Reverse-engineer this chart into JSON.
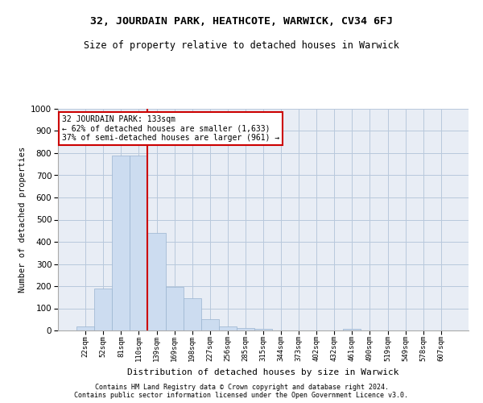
{
  "title1": "32, JOURDAIN PARK, HEATHCOTE, WARWICK, CV34 6FJ",
  "title2": "Size of property relative to detached houses in Warwick",
  "xlabel": "Distribution of detached houses by size in Warwick",
  "ylabel": "Number of detached properties",
  "footer1": "Contains HM Land Registry data © Crown copyright and database right 2024.",
  "footer2": "Contains public sector information licensed under the Open Government Licence v3.0.",
  "annotation_line1": "32 JOURDAIN PARK: 133sqm",
  "annotation_line2": "← 62% of detached houses are smaller (1,633)",
  "annotation_line3": "37% of semi-detached houses are larger (961) →",
  "property_size": 133,
  "bar_categories": [
    "22sqm",
    "52sqm",
    "81sqm",
    "110sqm",
    "139sqm",
    "169sqm",
    "198sqm",
    "227sqm",
    "256sqm",
    "285sqm",
    "315sqm",
    "344sqm",
    "373sqm",
    "402sqm",
    "432sqm",
    "461sqm",
    "490sqm",
    "519sqm",
    "549sqm",
    "578sqm",
    "607sqm"
  ],
  "bar_values": [
    18,
    190,
    790,
    790,
    440,
    195,
    145,
    50,
    17,
    12,
    8,
    0,
    0,
    0,
    0,
    8,
    0,
    0,
    0,
    0,
    0
  ],
  "bar_color": "#ccdcf0",
  "bar_edge_color": "#9ab4d0",
  "vline_color": "#cc0000",
  "annotation_box_color": "#cc0000",
  "background_color": "#ffffff",
  "plot_bg_color": "#e8edf5",
  "grid_color": "#b8c8dc",
  "ylim": [
    0,
    1000
  ],
  "yticks": [
    0,
    100,
    200,
    300,
    400,
    500,
    600,
    700,
    800,
    900,
    1000
  ]
}
